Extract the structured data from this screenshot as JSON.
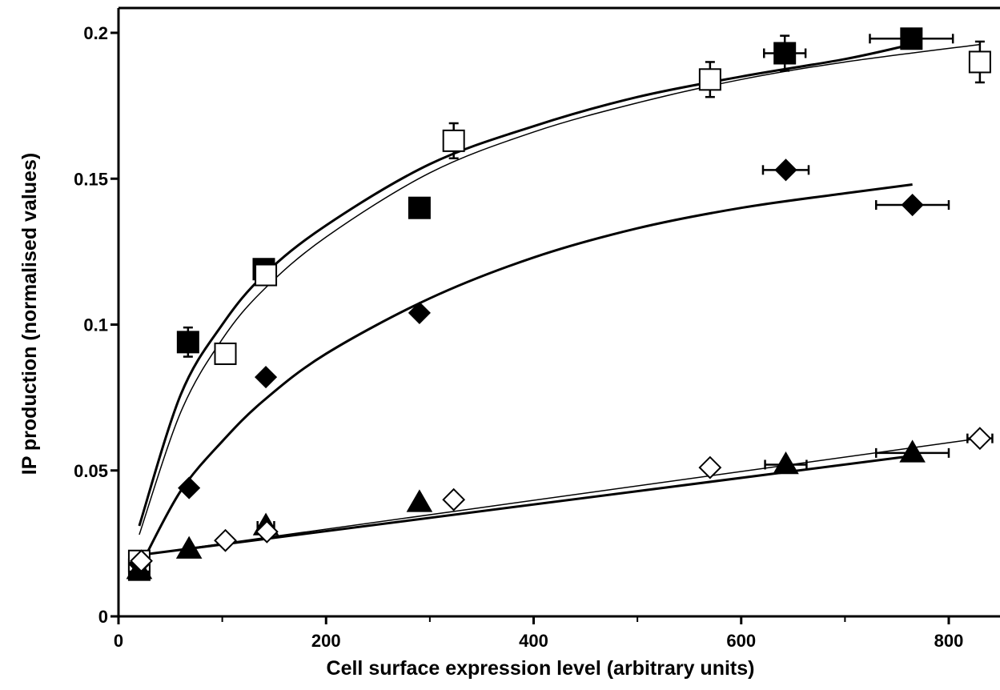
{
  "chart_data": {
    "type": "scatter",
    "title": "",
    "xlabel": "Cell surface expression level (arbitrary units)",
    "ylabel": "IP production (normalised values)",
    "xlim": [
      0,
      850
    ],
    "ylim": [
      0,
      0.2
    ],
    "x_ticks": [
      0,
      200,
      400,
      600,
      800
    ],
    "x_tick_labels": [
      "0",
      "200",
      "400",
      "600",
      "800"
    ],
    "y_ticks": [
      0,
      0.05,
      0.1,
      0.15,
      0.2
    ],
    "y_tick_labels": [
      "0",
      "0.05",
      "0.1",
      "0.15",
      "0.2"
    ],
    "grid": false,
    "legend": "none",
    "series": [
      {
        "marker": "filled-square",
        "color": "#000000",
        "points": [
          {
            "x": 20,
            "y": 0.016
          },
          {
            "x": 67,
            "y": 0.094,
            "yerr": 0.005
          },
          {
            "x": 140,
            "y": 0.119
          },
          {
            "x": 290,
            "y": 0.14
          },
          {
            "x": 642,
            "y": 0.193,
            "yerr": 0.006,
            "xerr": 20
          },
          {
            "x": 764,
            "y": 0.198,
            "xerr": 40
          }
        ],
        "fit": {
          "shape": "hyperbolic",
          "weight": "thick",
          "x": [
            20,
            60,
            100,
            140,
            200,
            300,
            400,
            500,
            600,
            700,
            764
          ],
          "y": [
            0.031,
            0.076,
            0.1,
            0.117,
            0.134,
            0.155,
            0.168,
            0.178,
            0.185,
            0.191,
            0.196
          ]
        }
      },
      {
        "marker": "open-square",
        "color": "#000000",
        "points": [
          {
            "x": 20,
            "y": 0.019
          },
          {
            "x": 103,
            "y": 0.09
          },
          {
            "x": 142,
            "y": 0.117
          },
          {
            "x": 323,
            "y": 0.163,
            "yerr": 0.006
          },
          {
            "x": 570,
            "y": 0.184,
            "yerr": 0.006
          },
          {
            "x": 830,
            "y": 0.19,
            "yerr": 0.007
          }
        ],
        "fit": {
          "shape": "hyperbolic",
          "weight": "thin",
          "x": [
            20,
            60,
            100,
            140,
            200,
            300,
            400,
            500,
            600,
            700,
            830
          ],
          "y": [
            0.028,
            0.07,
            0.095,
            0.112,
            0.13,
            0.152,
            0.166,
            0.176,
            0.184,
            0.19,
            0.196
          ]
        }
      },
      {
        "marker": "filled-diamond",
        "color": "#000000",
        "points": [
          {
            "x": 20,
            "y": 0.018
          },
          {
            "x": 68,
            "y": 0.044
          },
          {
            "x": 142,
            "y": 0.082
          },
          {
            "x": 290,
            "y": 0.104
          },
          {
            "x": 643,
            "y": 0.153,
            "xerr": 22
          },
          {
            "x": 765,
            "y": 0.141,
            "xerr": 35
          }
        ],
        "fit": {
          "shape": "hyperbolic",
          "weight": "thick",
          "x": [
            25,
            60,
            100,
            140,
            200,
            300,
            400,
            500,
            600,
            700,
            765
          ],
          "y": [
            0.02,
            0.043,
            0.06,
            0.074,
            0.09,
            0.109,
            0.123,
            0.133,
            0.14,
            0.145,
            0.148
          ]
        }
      },
      {
        "marker": "filled-triangle",
        "color": "#000000",
        "points": [
          {
            "x": 20,
            "y": 0.016
          },
          {
            "x": 68,
            "y": 0.023
          },
          {
            "x": 142,
            "y": 0.031,
            "xerr": 8
          },
          {
            "x": 290,
            "y": 0.039
          },
          {
            "x": 643,
            "y": 0.052,
            "xerr": 20
          },
          {
            "x": 765,
            "y": 0.056,
            "xerr": 35
          }
        ],
        "fit": {
          "shape": "linear",
          "weight": "thick",
          "x": [
            20,
            765
          ],
          "y": [
            0.021,
            0.055
          ]
        }
      },
      {
        "marker": "open-diamond",
        "color": "#000000",
        "points": [
          {
            "x": 22,
            "y": 0.019
          },
          {
            "x": 103,
            "y": 0.026
          },
          {
            "x": 143,
            "y": 0.029
          },
          {
            "x": 323,
            "y": 0.04
          },
          {
            "x": 570,
            "y": 0.051
          },
          {
            "x": 830,
            "y": 0.061,
            "xerr": 12
          }
        ],
        "fit": {
          "shape": "linear",
          "weight": "thin",
          "x": [
            20,
            830
          ],
          "y": [
            0.021,
            0.061
          ]
        }
      }
    ]
  }
}
